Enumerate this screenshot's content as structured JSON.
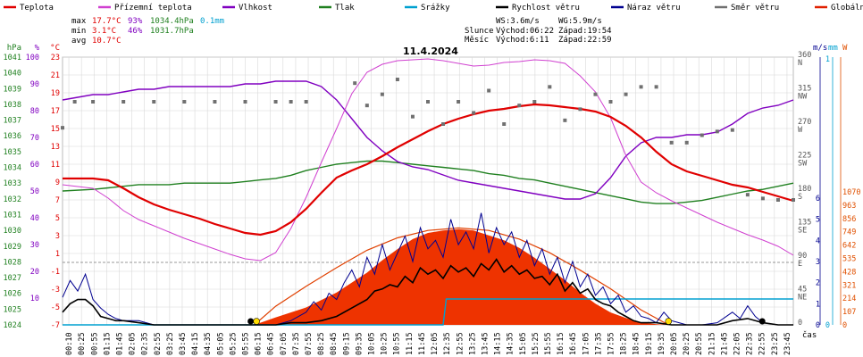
{
  "title": "11.4.2024",
  "legend": [
    {
      "name": "Teplota",
      "color": "#e00000"
    },
    {
      "name": "Přízemní teplota",
      "color": "#d040d0"
    },
    {
      "name": "Vlhkost",
      "color": "#8000c0"
    },
    {
      "name": "Tlak",
      "color": "#208020"
    },
    {
      "name": "Srážky",
      "color": "#00a0d0"
    },
    {
      "name": "Rychlost větru",
      "color": "#000000"
    },
    {
      "name": "Náraz větru",
      "color": "#000090"
    },
    {
      "name": "Směr větru",
      "color": "#707070"
    },
    {
      "name": "Globální záření",
      "color": "#e02000"
    }
  ],
  "stats": {
    "max": {
      "label": "max",
      "temp": "17.7°C",
      "hum": "93%",
      "press": "1034.4hPa",
      "rain": "0.1mm"
    },
    "min": {
      "label": "min",
      "temp": "3.1°C",
      "hum": "46%",
      "press": "1031.7hPa"
    },
    "avg": {
      "label": "avg",
      "temp": "10.7°C"
    }
  },
  "wind_info": {
    "ws": "WS:3.6m/s",
    "wg": "WG:5.9m/s",
    "slunce": "Slunce",
    "sun_rise": "Východ:06:22",
    "sun_set": "Západ:19:54",
    "mesic": "Měsíc",
    "moon_rise": "Východ:6:11",
    "moon_set": "Západ:22:59"
  },
  "axis_units": {
    "hpa": "hPa",
    "pct": "%",
    "degc": "°C",
    "ms": "m/s",
    "mm": "mm",
    "w": "W",
    "cas": "čas"
  },
  "colors": {
    "hpa": "#208020",
    "pct": "#8000c0",
    "degc": "#e00000",
    "ms": "#000090",
    "mm": "#00a0d0",
    "w": "#e05000",
    "grid": "#d8d8d8"
  },
  "chart_data": {
    "type": "line",
    "x_ticks": [
      "00:10",
      "00:25",
      "00:55",
      "01:15",
      "01:45",
      "02:05",
      "02:35",
      "02:55",
      "03:25",
      "03:45",
      "04:15",
      "04:35",
      "05:05",
      "05:25",
      "05:55",
      "06:15",
      "06:45",
      "07:05",
      "07:35",
      "07:55",
      "08:25",
      "08:45",
      "09:15",
      "09:35",
      "10:05",
      "10:25",
      "10:55",
      "11:15",
      "11:45",
      "12:05",
      "12:35",
      "12:55",
      "13:25",
      "13:45",
      "14:15",
      "14:35",
      "15:05",
      "15:25",
      "15:55",
      "16:15",
      "16:45",
      "17:05",
      "17:35",
      "17:55",
      "18:25",
      "18:45",
      "19:15",
      "19:35",
      "20:05",
      "20:25",
      "20:55",
      "21:15",
      "21:45",
      "22:05",
      "22:35",
      "22:55",
      "23:25",
      "23:45"
    ],
    "y_hpa": {
      "ticks": [
        "1041",
        "1040",
        "1039",
        "1038",
        "1037",
        "1036",
        "1035",
        "1034",
        "1033",
        "1032",
        "1031",
        "1030",
        "1029",
        "1028",
        "1027",
        "1026",
        "1025",
        "1024"
      ],
      "range": [
        1024,
        1041
      ]
    },
    "y_pct": {
      "ticks": [
        "100",
        "90",
        "80",
        "70",
        "60",
        "50",
        "40",
        "30",
        "20",
        "10"
      ],
      "range": [
        0,
        100
      ]
    },
    "y_degc": {
      "ticks": [
        "23",
        "21",
        "19",
        "17",
        "15",
        "13",
        "11",
        "9",
        "7",
        "5",
        "3",
        "1",
        "-1",
        "-3",
        "-5",
        "-7"
      ],
      "range": [
        -7,
        23
      ]
    },
    "y_dir": {
      "ticks": [
        "360",
        "315",
        "270",
        "225",
        "180",
        "135",
        "90",
        "45",
        "0"
      ],
      "labels": [
        "N",
        "NW",
        "W",
        "SW",
        "S",
        "SE",
        "E",
        "NE",
        ""
      ]
    },
    "y_ms": {
      "ticks": [
        "6",
        "5",
        "4",
        "3",
        "2",
        "1",
        "0"
      ]
    },
    "y_mm": {
      "ticks": [
        "1",
        "0"
      ]
    },
    "y_w": {
      "ticks": [
        "1070",
        "963",
        "856",
        "749",
        "642",
        "535",
        "428",
        "321",
        "214",
        "107",
        "0"
      ]
    },
    "series": [
      {
        "name": "Teplota",
        "unit": "°C",
        "x": [
          0,
          1,
          1.5,
          2,
          2.5,
          3,
          3.5,
          4,
          4.5,
          5,
          5.5,
          6,
          6.5,
          7,
          7.5,
          8,
          8.5,
          9,
          9.5,
          10,
          10.5,
          11,
          11.5,
          12,
          12.5,
          13,
          13.5,
          14,
          14.5,
          15,
          15.5,
          16,
          16.5,
          17,
          17.5,
          18,
          18.5,
          19,
          19.5,
          20,
          20.5,
          21,
          21.5,
          22,
          22.5,
          23,
          23.5,
          24
        ],
        "y": [
          9.4,
          9.4,
          9.2,
          8.3,
          7.3,
          6.5,
          5.9,
          5.4,
          4.9,
          4.3,
          3.8,
          3.3,
          3.1,
          3.5,
          4.5,
          6.0,
          7.8,
          9.5,
          10.3,
          11.0,
          11.9,
          12.9,
          13.8,
          14.7,
          15.5,
          16.1,
          16.6,
          17.0,
          17.2,
          17.5,
          17.7,
          17.6,
          17.4,
          17.2,
          16.9,
          16.3,
          15.3,
          14.0,
          12.4,
          11.0,
          10.2,
          9.7,
          9.2,
          8.7,
          8.4,
          7.9,
          7.4,
          6.9
        ]
      },
      {
        "name": "Přízemní teplota",
        "unit": "°C",
        "x": [
          0,
          1,
          1.5,
          2,
          2.5,
          3,
          3.5,
          4,
          4.5,
          5,
          5.5,
          6,
          6.5,
          7,
          7.5,
          8,
          8.5,
          9,
          9.5,
          10,
          10.5,
          11,
          11.5,
          12,
          12.5,
          13,
          13.5,
          14,
          14.5,
          15,
          15.5,
          16,
          16.5,
          17,
          17.5,
          18,
          18.5,
          19,
          19.5,
          20,
          20.5,
          21,
          21.5,
          22,
          22.5,
          23,
          23.5,
          24
        ],
        "y": [
          8.7,
          8.3,
          7.2,
          5.8,
          4.8,
          4.1,
          3.4,
          2.7,
          2.1,
          1.5,
          0.9,
          0.4,
          0.2,
          1.1,
          3.8,
          7.3,
          11.2,
          15.0,
          18.9,
          21.3,
          22.2,
          22.6,
          22.7,
          22.8,
          22.6,
          22.3,
          22.0,
          22.1,
          22.4,
          22.5,
          22.7,
          22.6,
          22.3,
          20.9,
          19.1,
          16.2,
          12.0,
          9.0,
          7.8,
          6.9,
          6.1,
          5.3,
          4.5,
          3.8,
          3.1,
          2.5,
          1.8,
          0.8
        ]
      },
      {
        "name": "Vlhkost",
        "unit": "%",
        "x": [
          0,
          1,
          1.5,
          2,
          2.5,
          3,
          3.5,
          4,
          4.5,
          5,
          5.5,
          6,
          6.5,
          7,
          7.5,
          8,
          8.5,
          9,
          9.5,
          10,
          10.5,
          11,
          11.5,
          12,
          12.5,
          13,
          13.5,
          14,
          14.5,
          15,
          15.5,
          16,
          16.5,
          17,
          17.5,
          18,
          18.5,
          19,
          19.5,
          20,
          20.5,
          21,
          21.5,
          22,
          22.5,
          23,
          23.5,
          24
        ],
        "y": [
          84,
          86,
          86,
          87,
          88,
          88,
          89,
          89,
          89,
          89,
          89,
          90,
          90,
          91,
          91,
          91,
          89,
          84,
          77,
          70,
          65,
          61,
          59,
          58,
          56,
          54,
          53,
          52,
          51,
          50,
          49,
          48,
          47,
          47,
          49,
          55,
          63,
          68,
          70,
          70,
          71,
          71,
          72,
          75,
          79,
          81,
          82,
          84
        ]
      },
      {
        "name": "Tlak",
        "unit": "hPa",
        "x": [
          0,
          1,
          1.5,
          2,
          2.5,
          3,
          3.5,
          4,
          4.5,
          5,
          5.5,
          6,
          6.5,
          7,
          7.5,
          8,
          8.5,
          9,
          9.5,
          10,
          10.5,
          11,
          11.5,
          12,
          12.5,
          13,
          13.5,
          14,
          14.5,
          15,
          15.5,
          16,
          16.5,
          17,
          17.5,
          18,
          18.5,
          19,
          19.5,
          20,
          20.5,
          21,
          21.5,
          22,
          22.5,
          23,
          23.5,
          24
        ],
        "y": [
          1032.5,
          1032.6,
          1032.7,
          1032.8,
          1032.9,
          1032.9,
          1032.9,
          1033.0,
          1033.0,
          1033.0,
          1033.0,
          1033.1,
          1033.2,
          1033.3,
          1033.5,
          1033.8,
          1034.0,
          1034.2,
          1034.3,
          1034.4,
          1034.4,
          1034.3,
          1034.2,
          1034.1,
          1034.0,
          1033.9,
          1033.8,
          1033.6,
          1033.5,
          1033.3,
          1033.2,
          1033.0,
          1032.8,
          1032.6,
          1032.4,
          1032.2,
          1032.0,
          1031.8,
          1031.7,
          1031.7,
          1031.8,
          1031.9,
          1032.1,
          1032.3,
          1032.5,
          1032.6,
          1032.8,
          1033.0
        ]
      },
      {
        "name": "Srážky",
        "unit": "mm",
        "x": [
          0,
          12.5,
          12.6,
          18.9,
          19.0,
          24
        ],
        "y": [
          0,
          0,
          0.1,
          0.1,
          0.1,
          0.1
        ]
      },
      {
        "name": "Rychlost větru",
        "unit": "m/s",
        "x": [
          0,
          0.25,
          0.5,
          0.75,
          1,
          1.25,
          1.5,
          1.75,
          2,
          2.5,
          3,
          3.5,
          4,
          4.5,
          5,
          5.5,
          6,
          6.5,
          7,
          7.5,
          8,
          8.5,
          9,
          9.5,
          10,
          10.25,
          10.5,
          10.75,
          11,
          11.25,
          11.5,
          11.75,
          12,
          12.25,
          12.5,
          12.75,
          13,
          13.25,
          13.5,
          13.75,
          14,
          14.25,
          14.5,
          14.75,
          15,
          15.25,
          15.5,
          15.75,
          16,
          16.25,
          16.5,
          16.75,
          17,
          17.25,
          17.5,
          17.75,
          18,
          18.25,
          18.5,
          18.75,
          19,
          19.5,
          20,
          20.5,
          21,
          21.5,
          22,
          22.5,
          23,
          23.5,
          24
        ],
        "y": [
          0.6,
          1.0,
          1.2,
          1.2,
          0.9,
          0.4,
          0.3,
          0.2,
          0.2,
          0.1,
          0,
          0,
          0,
          0,
          0,
          0,
          0,
          0,
          0,
          0.1,
          0.1,
          0.2,
          0.4,
          0.8,
          1.2,
          1.6,
          1.7,
          1.9,
          1.8,
          2.3,
          2.0,
          2.7,
          2.4,
          2.6,
          2.2,
          2.8,
          2.5,
          2.7,
          2.3,
          2.9,
          2.6,
          3.1,
          2.5,
          2.8,
          2.4,
          2.6,
          2.2,
          2.3,
          1.9,
          2.4,
          1.6,
          2.0,
          1.5,
          1.7,
          1.2,
          1.0,
          0.9,
          0.6,
          0.4,
          0.2,
          0.1,
          0.1,
          0,
          0,
          0,
          0,
          0.2,
          0.3,
          0.1,
          0,
          0
        ]
      },
      {
        "name": "Náraz větru",
        "unit": "m/s",
        "x": [
          0,
          0.25,
          0.5,
          0.75,
          1,
          1.25,
          1.5,
          1.75,
          2,
          2.5,
          3,
          3.5,
          4,
          4.5,
          5,
          5.5,
          6,
          6.5,
          7,
          7.5,
          8,
          8.25,
          8.5,
          8.75,
          9,
          9.25,
          9.5,
          9.75,
          10,
          10.25,
          10.5,
          10.75,
          11,
          11.25,
          11.5,
          11.75,
          12,
          12.25,
          12.5,
          12.75,
          13,
          13.25,
          13.5,
          13.75,
          14,
          14.25,
          14.5,
          14.75,
          15,
          15.25,
          15.5,
          15.75,
          16,
          16.25,
          16.5,
          16.75,
          17,
          17.25,
          17.5,
          17.75,
          18,
          18.25,
          18.5,
          18.75,
          19,
          19.25,
          19.5,
          19.75,
          20,
          20.5,
          21,
          21.5,
          22,
          22.25,
          22.5,
          22.75,
          23,
          23.5,
          24
        ],
        "y": [
          1.3,
          2.1,
          1.6,
          2.4,
          1.2,
          0.8,
          0.5,
          0.3,
          0.2,
          0.2,
          0,
          0,
          0,
          0,
          0,
          0,
          0,
          0,
          0,
          0.2,
          0.6,
          1.1,
          0.7,
          1.5,
          1.2,
          2.0,
          2.6,
          1.8,
          3.2,
          2.4,
          3.8,
          2.6,
          3.4,
          4.2,
          3.0,
          4.6,
          3.6,
          4.0,
          3.2,
          5.0,
          3.8,
          4.4,
          3.6,
          5.3,
          3.4,
          4.6,
          3.8,
          4.4,
          3.2,
          4.0,
          2.8,
          3.6,
          2.4,
          3.2,
          2.0,
          3.0,
          1.8,
          2.4,
          1.4,
          1.8,
          1.0,
          1.4,
          0.6,
          0.9,
          0.4,
          0.3,
          0.1,
          0.6,
          0.2,
          0,
          0,
          0.1,
          0.6,
          0.3,
          0.9,
          0.4,
          0.1,
          0,
          0
        ]
      },
      {
        "name": "Směr větru",
        "unit": "°",
        "x": [
          0,
          0.4,
          1,
          2,
          3,
          4,
          5,
          6,
          7,
          7.5,
          8,
          9.6,
          10,
          10.5,
          11,
          11.5,
          12,
          12.5,
          13,
          13.5,
          14,
          14.5,
          15,
          15.5,
          16,
          16.5,
          17,
          17.5,
          18,
          18.5,
          19,
          19.5,
          20,
          20.5,
          21,
          21.5,
          22,
          22.5,
          23,
          23.5,
          24
        ],
        "y": [
          265,
          300,
          300,
          300,
          300,
          300,
          300,
          300,
          300,
          300,
          300,
          325,
          295,
          310,
          330,
          280,
          300,
          270,
          300,
          285,
          315,
          270,
          295,
          300,
          320,
          275,
          290,
          310,
          300,
          310,
          320,
          320,
          245,
          245,
          255,
          260,
          262,
          175,
          170,
          168,
          168
        ]
      },
      {
        "name": "Globální záření",
        "unit": "W",
        "x": [
          6.3,
          7,
          8,
          9,
          10,
          10.5,
          11,
          11.5,
          12,
          12.5,
          13,
          13.5,
          14,
          14.5,
          15,
          15.5,
          16,
          16.5,
          17,
          17.5,
          18,
          18.5,
          19,
          19.5,
          19.9
        ],
        "y": [
          0,
          60,
          140,
          260,
          420,
          520,
          610,
          690,
          740,
          760,
          770,
          760,
          720,
          680,
          620,
          540,
          450,
          360,
          260,
          170,
          100,
          55,
          20,
          5,
          0
        ]
      },
      {
        "name": "Globální záření max",
        "unit": "W",
        "x": [
          6.3,
          7,
          8,
          9,
          10,
          11,
          12,
          13,
          14,
          15,
          16,
          17,
          18,
          19,
          19.9
        ],
        "y": [
          0,
          150,
          310,
          460,
          600,
          700,
          760,
          780,
          760,
          690,
          580,
          440,
          290,
          120,
          0
        ]
      }
    ]
  }
}
